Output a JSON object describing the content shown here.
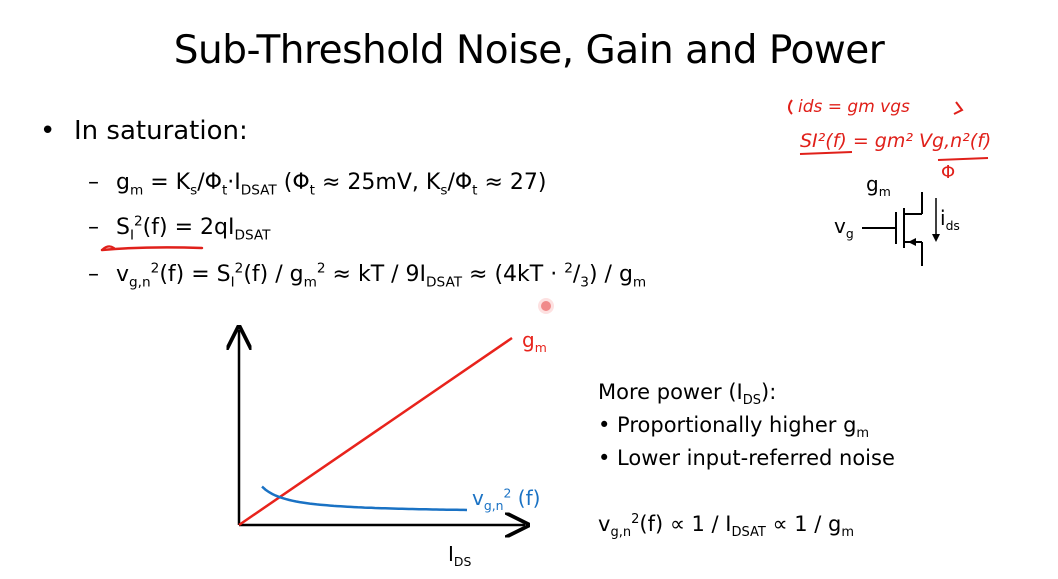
{
  "title": "Sub-Threshold Noise, Gain and Power",
  "bullet": {
    "marker": "•",
    "text": "In saturation:"
  },
  "subs": {
    "dash": "–",
    "gm_line": {
      "g": "g",
      "m": "m",
      "eq": " = K",
      "s": "s",
      "rest1": "/Φ",
      "t": "t",
      "dot": "·I",
      "dsat": "DSAT",
      "paren": " (Φ",
      "approx1": " ≈ 25mV, K",
      "s2": "s",
      "slash": "/Φ",
      "t2": "t",
      "approx2": " ≈ 27)"
    },
    "si_line": {
      "S": "S",
      "I": "I",
      "two": "2",
      "f": "(f)",
      "eq": " = 2qI",
      "dsat": "DSAT"
    },
    "vgn_line": {
      "v": "v",
      "gn": "g,n",
      "two": "2",
      "f": "(f) = S",
      "I": "I",
      "two2": "2",
      "f2": "(f) / g",
      "m": "m",
      "two3": "2",
      "approx": " ≈ kT / 9I",
      "dsat": "DSAT",
      "approx2": " ≈ (4kT · ",
      "frac_n": "2",
      "frac_slash": "/",
      "frac_d": "3",
      "end": ") / g",
      "m2": "m"
    }
  },
  "annotation": {
    "line1": "ids = gm vgs",
    "line2": "SI²(f) = gm² Vg,n²(f)",
    "phi": "Φ"
  },
  "circuit": {
    "gm_label": {
      "g": "g",
      "m": "m"
    },
    "vg_label": {
      "v": "v",
      "g": "g"
    },
    "ids_label": {
      "i": "i",
      "ds": "ds"
    }
  },
  "graph": {
    "gm_label": {
      "g": "g",
      "m": "m"
    },
    "vgn_label": {
      "v": "v",
      "gn": "g,n",
      "two": "2",
      "f": " (f)"
    },
    "x_label": {
      "I": "I",
      "ds": "DS"
    }
  },
  "chart_data": {
    "type": "line",
    "xlabel": "IDS",
    "ylabel": "",
    "series": [
      {
        "name": "gm",
        "shape": "linear increasing from origin",
        "color": "#e8231c"
      },
      {
        "name": "vg,n2 (f)",
        "shape": "inverse (∝ 1/IDS)",
        "color": "#1a72c4"
      }
    ]
  },
  "notes": {
    "heading": {
      "a": "More power (I",
      "ds": "DS",
      "b": "):"
    },
    "item1": {
      "a": "• Proportionally higher g",
      "m": "m"
    },
    "item2": "• Lower input-referred noise",
    "relation": {
      "v": "v",
      "gn": "g,n",
      "two": "2",
      "a": "(f) ∝ 1 / I",
      "dsat": "DSAT",
      "b": " ∝ 1 / g",
      "m": "m"
    }
  },
  "colors": {
    "red": "#e8231c",
    "blue": "#1a72c4",
    "ink_red": "#e0201a"
  }
}
